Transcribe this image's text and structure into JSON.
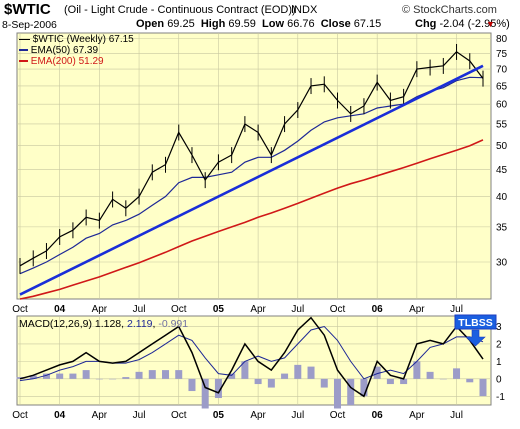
{
  "header": {
    "symbol": "$WTIC",
    "description": "(Oil - Light Crude - Continuous Contract (EOD))",
    "exchange": "INDX",
    "brand": "© StockCharts.com",
    "date": "8-Sep-2006",
    "open_label": "Open",
    "open": "69.25",
    "high_label": "High",
    "high": "69.59",
    "low_label": "Low",
    "low": "66.76",
    "close_label": "Close",
    "close": "67.15",
    "chg_label": "Chg",
    "chg": "-2.04 (-2.95%)",
    "chg_icon": "down-triangle-icon"
  },
  "colors": {
    "plot_bg": "#ffffc8",
    "ema50": "#1e2896",
    "ema200": "#d01818",
    "trendline": "#1a2ed8",
    "histogram": "#9c9cc8",
    "macd": "#000000",
    "signal": "#1e2896",
    "annotation": "#1a5fe0"
  },
  "chart_data": [
    {
      "type": "line",
      "title": "",
      "subtype": "ohlc-weekly",
      "x": [
        "2003-10",
        "2003-11",
        "2003-12",
        "2004-01",
        "2004-02",
        "2004-03",
        "2004-04",
        "2004-05",
        "2004-06",
        "2004-07",
        "2004-08",
        "2004-09",
        "2004-10",
        "2004-11",
        "2004-12",
        "2005-01",
        "2005-02",
        "2005-03",
        "2005-04",
        "2005-05",
        "2005-06",
        "2005-07",
        "2005-08",
        "2005-09",
        "2005-10",
        "2005-11",
        "2005-12",
        "2006-01",
        "2006-02",
        "2006-03",
        "2006-04",
        "2006-05",
        "2006-06",
        "2006-07",
        "2006-08",
        "2006-09"
      ],
      "x_tick_labels": [
        "Oct",
        "04",
        "Apr",
        "Jul",
        "Oct",
        "05",
        "Apr",
        "Jul",
        "Oct",
        "06",
        "Apr",
        "Jul"
      ],
      "x_tick_dates": [
        "2003-10",
        "2004-01",
        "2004-04",
        "2004-07",
        "2004-10",
        "2005-01",
        "2005-04",
        "2005-07",
        "2005-10",
        "2006-01",
        "2006-04",
        "2006-07"
      ],
      "y_scale": "log",
      "y_tick_labels": [
        "30",
        "35",
        "40",
        "45",
        "50",
        "55",
        "60",
        "65",
        "70",
        "75",
        "80"
      ],
      "y_ticks": [
        30,
        35,
        40,
        45,
        50,
        55,
        60,
        65,
        70,
        75,
        80
      ],
      "ylim": [
        25.5,
        82
      ],
      "series": [
        {
          "name": "$WTIC (Weekly)",
          "label_value": "67.15",
          "values": [
            29.5,
            30.5,
            31.5,
            33.5,
            34.5,
            36.5,
            36.0,
            39.5,
            38.0,
            40.0,
            44.5,
            46.0,
            53.0,
            48.0,
            43.0,
            46.5,
            48.0,
            55.0,
            53.0,
            48.0,
            55.0,
            58.5,
            65.0,
            65.5,
            61.0,
            57.5,
            59.5,
            66.0,
            61.0,
            62.0,
            70.0,
            70.5,
            71.0,
            75.5,
            72.5,
            67.15
          ]
        },
        {
          "name": "EMA(50)",
          "label_value": "67.39",
          "values": [
            28.5,
            29.2,
            30.0,
            31.0,
            32.0,
            33.3,
            34.0,
            35.3,
            36.0,
            37.0,
            38.5,
            40.0,
            42.5,
            43.5,
            43.5,
            44.0,
            44.5,
            46.5,
            47.5,
            47.5,
            49.0,
            51.0,
            53.5,
            55.5,
            56.5,
            57.0,
            57.5,
            59.0,
            59.5,
            60.0,
            62.0,
            63.5,
            64.5,
            66.5,
            67.5,
            67.39
          ]
        },
        {
          "name": "EMA(200)",
          "label_value": "51.29",
          "values": [
            25.5,
            25.8,
            26.2,
            26.6,
            27.1,
            27.6,
            28.1,
            28.7,
            29.3,
            29.9,
            30.6,
            31.3,
            32.1,
            32.9,
            33.6,
            34.3,
            35.0,
            35.7,
            36.5,
            37.2,
            38.0,
            38.8,
            39.7,
            40.6,
            41.5,
            42.3,
            43.0,
            43.8,
            44.6,
            45.4,
            46.3,
            47.2,
            48.1,
            49.0,
            50.0,
            51.29
          ]
        }
      ],
      "trendline": {
        "from": {
          "x": "2003-10",
          "y": 26
        },
        "to": {
          "x": "2006-09",
          "y": 71
        }
      }
    },
    {
      "type": "line",
      "title": "MACD(12,26,9)",
      "labels": {
        "macd": "1.128",
        "signal": "2.119",
        "histogram": "-0.991"
      },
      "x": [
        "2003-10",
        "2003-11",
        "2003-12",
        "2004-01",
        "2004-02",
        "2004-03",
        "2004-04",
        "2004-05",
        "2004-06",
        "2004-07",
        "2004-08",
        "2004-09",
        "2004-10",
        "2004-11",
        "2004-12",
        "2005-01",
        "2005-02",
        "2005-03",
        "2005-04",
        "2005-05",
        "2005-06",
        "2005-07",
        "2005-08",
        "2005-09",
        "2005-10",
        "2005-11",
        "2005-12",
        "2006-01",
        "2006-02",
        "2006-03",
        "2006-04",
        "2006-05",
        "2006-06",
        "2006-07",
        "2006-08",
        "2006-09"
      ],
      "x_tick_labels": [
        "Oct",
        "04",
        "Apr",
        "Jul",
        "Oct",
        "05",
        "Apr",
        "Jul",
        "Oct",
        "06",
        "Apr",
        "Jul"
      ],
      "y_tick_labels": [
        "-1",
        "0",
        "1",
        "2",
        "3"
      ],
      "y_ticks": [
        -1,
        0,
        1,
        2,
        3
      ],
      "ylim": [
        -1.5,
        3.6
      ],
      "series": [
        {
          "name": "MACD",
          "values": [
            0.0,
            0.2,
            0.5,
            0.8,
            1.0,
            1.5,
            1.0,
            0.9,
            1.0,
            1.5,
            2.0,
            2.5,
            3.0,
            1.5,
            -0.5,
            -0.8,
            0.5,
            2.0,
            1.0,
            0.5,
            1.5,
            2.8,
            3.5,
            2.5,
            0.5,
            -0.5,
            -1.0,
            1.0,
            0.2,
            0.0,
            2.0,
            2.2,
            2.0,
            3.0,
            2.2,
            1.128
          ]
        },
        {
          "name": "Signal",
          "values": [
            -0.1,
            0.0,
            0.2,
            0.5,
            0.7,
            1.0,
            1.0,
            0.9,
            0.9,
            1.1,
            1.5,
            2.0,
            2.5,
            2.2,
            1.2,
            0.3,
            0.2,
            1.0,
            1.3,
            1.0,
            1.2,
            2.0,
            2.8,
            3.0,
            2.2,
            1.0,
            0.0,
            0.3,
            0.5,
            0.3,
            1.0,
            1.8,
            2.0,
            2.4,
            2.4,
            2.119
          ]
        },
        {
          "name": "Histogram",
          "values": [
            0.1,
            0.2,
            0.3,
            0.3,
            0.3,
            0.5,
            0.0,
            0.0,
            0.1,
            0.4,
            0.5,
            0.5,
            0.5,
            -0.7,
            -1.7,
            -1.1,
            0.3,
            1.0,
            -0.3,
            -0.5,
            0.3,
            0.8,
            0.7,
            -0.5,
            -1.7,
            -1.5,
            -1.0,
            0.7,
            -0.3,
            -0.3,
            1.0,
            0.4,
            0.0,
            0.6,
            -0.2,
            -0.991
          ]
        }
      ],
      "annotation": {
        "text": "TLBSS",
        "icon": "down-arrow-icon"
      }
    }
  ]
}
